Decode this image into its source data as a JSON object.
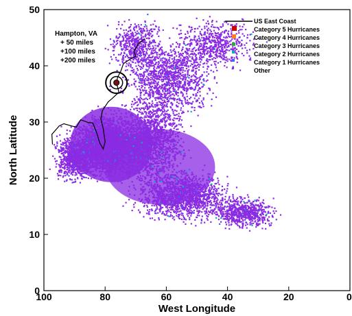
{
  "chart_data": {
    "type": "scatter",
    "title": "",
    "xlabel": "West Longitude",
    "ylabel": "North Latitude",
    "xlim": [
      100,
      0
    ],
    "ylim": [
      0,
      50
    ],
    "x_ticks": [
      "100",
      "80",
      "60",
      "40",
      "20",
      "0"
    ],
    "y_ticks": [
      "0",
      "10",
      "20",
      "30",
      "40",
      "50"
    ],
    "grid": false,
    "legend_position": "top-right",
    "annotation": {
      "lines": [
        "Hampton, VA",
        "+ 50 miles",
        "+100 miles",
        "+200 miles"
      ],
      "marker": [
        76.3,
        37.0
      ]
    },
    "series": [
      {
        "name": "US East Coast",
        "color": "#000000",
        "marker": "line"
      },
      {
        "name": "Category 5 Hurricanes",
        "color": "#cc0000",
        "marker": "square"
      },
      {
        "name": "Category 4 Hurricanes",
        "color": "#ff7f27",
        "marker": "square"
      },
      {
        "name": "Category 3 Hurricanes",
        "color": "#33aa33",
        "marker": "square"
      },
      {
        "name": "Category 2 Hurricanes",
        "color": "#00b0c0",
        "marker": "square"
      },
      {
        "name": "Category 1 Hurricanes",
        "color": "#4060ff",
        "marker": "square"
      },
      {
        "name": "Other",
        "color": "#8a2be2",
        "marker": "square"
      }
    ]
  }
}
